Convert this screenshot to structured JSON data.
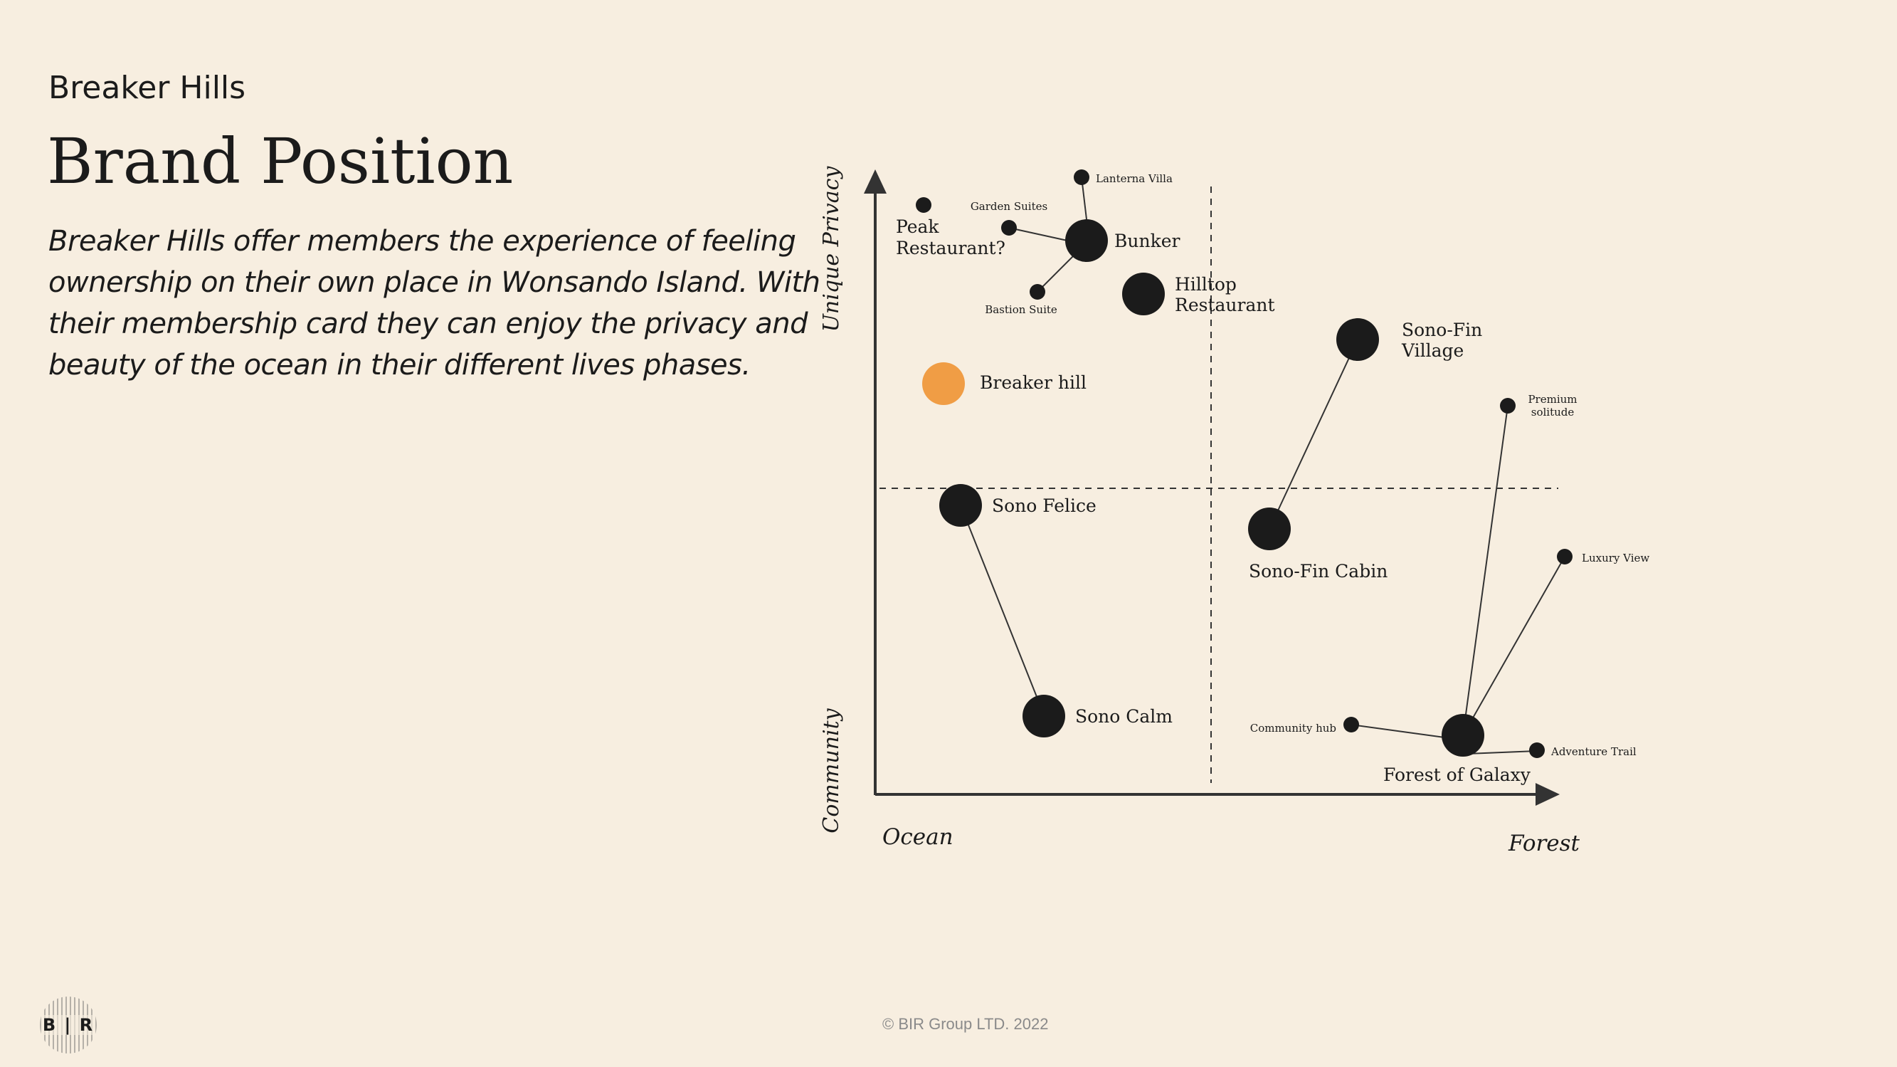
{
  "header": {
    "subtitle": "Breaker Hills",
    "title": "Brand Position"
  },
  "description": {
    "lines": [
      "Breaker Hills offer members the experience of feeling",
      "ownership on their own place in Wonsando Island. With",
      "their membership card they can enjoy the privacy and",
      "beauty of the ocean in their different lives phases."
    ]
  },
  "axes": {
    "y_top": "Unique Privacy",
    "y_bottom": "Community",
    "x_left": "Ocean",
    "x_right": "Forest"
  },
  "nodes": {
    "lanterna_villa": "Lanterna Villa",
    "garden_suites": "Garden Suites",
    "peak_restaurant_1": "Peak",
    "peak_restaurant_2": "Restaurant?",
    "bunker": "Bunker",
    "bastion_suite": "Bastion Suite",
    "hilltop_1": "Hilltop",
    "hilltop_2": "Restaurant",
    "sonofin_village_1": "Sono-Fin",
    "sonofin_village_2": "Village",
    "breaker_hill": "Breaker hill",
    "premium_1": "Premium",
    "premium_2": "solitude",
    "sono_felice": "Sono Felice",
    "sonofin_cabin": "Sono-Fin Cabin",
    "luxury_view": "Luxury View",
    "sono_calm": "Sono Calm",
    "community_hub": "Community hub",
    "adventure_trail": "Adventure Trail",
    "forest_of_galaxy": "Forest of Galaxy"
  },
  "colors": {
    "highlight": "#f09d45",
    "node": "#1b1b1b",
    "background": "#f7eee0"
  },
  "footer": {
    "copyright": "© BIR Group LTD. 2022",
    "logo_text": "B | R"
  }
}
